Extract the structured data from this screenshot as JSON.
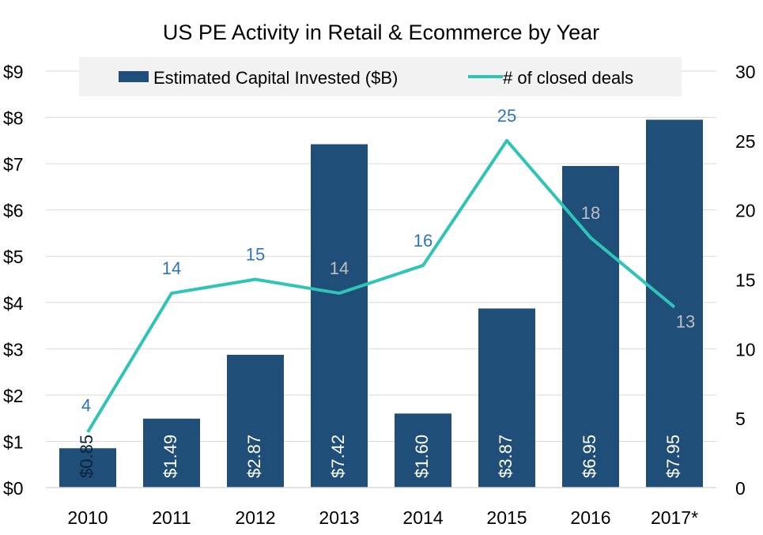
{
  "chart_data": {
    "type": "bar",
    "title": "US PE Activity in Retail & Ecommerce by Year",
    "categories": [
      "2010",
      "2011",
      "2012",
      "2013",
      "2014",
      "2015",
      "2016",
      "2017*"
    ],
    "series": [
      {
        "name": "Estimated Capital Invested ($B)",
        "type": "bar",
        "axis": "left",
        "values": [
          0.85,
          1.49,
          2.87,
          7.42,
          1.6,
          3.87,
          6.95,
          7.95
        ],
        "data_labels": [
          "$0.85",
          "$1.49",
          "$2.87",
          "$7.42",
          "$1.60",
          "$3.87",
          "$6.95",
          "$7.95"
        ],
        "color": "#1f4e79"
      },
      {
        "name": "# of closed deals",
        "type": "line",
        "axis": "right",
        "values": [
          4,
          14,
          15,
          14,
          16,
          25,
          18,
          13
        ],
        "data_labels": [
          "4",
          "14",
          "15",
          "14",
          "16",
          "25",
          "18",
          "13"
        ],
        "color": "#2ec4b6"
      }
    ],
    "y_left": {
      "ylim": [
        0,
        9
      ],
      "ticks": [
        0,
        1,
        2,
        3,
        4,
        5,
        6,
        7,
        8,
        9
      ],
      "tick_labels": [
        "$0",
        "$1",
        "$2",
        "$3",
        "$4",
        "$5",
        "$6",
        "$7",
        "$8",
        "$9"
      ]
    },
    "y_right": {
      "ylim": [
        0,
        30
      ],
      "ticks": [
        0,
        5,
        10,
        15,
        20,
        25,
        30
      ],
      "tick_labels": [
        "0",
        "5",
        "10",
        "15",
        "20",
        "25",
        "30"
      ]
    },
    "grid": true,
    "legend_position": "top",
    "colors": {
      "grid": "#d9d9d9",
      "legend_bg": "#f2f2f2",
      "text": "#000000",
      "line_label_on_bar": "#bfbfbf",
      "line_label_off_bar": "#2e75b6"
    }
  }
}
